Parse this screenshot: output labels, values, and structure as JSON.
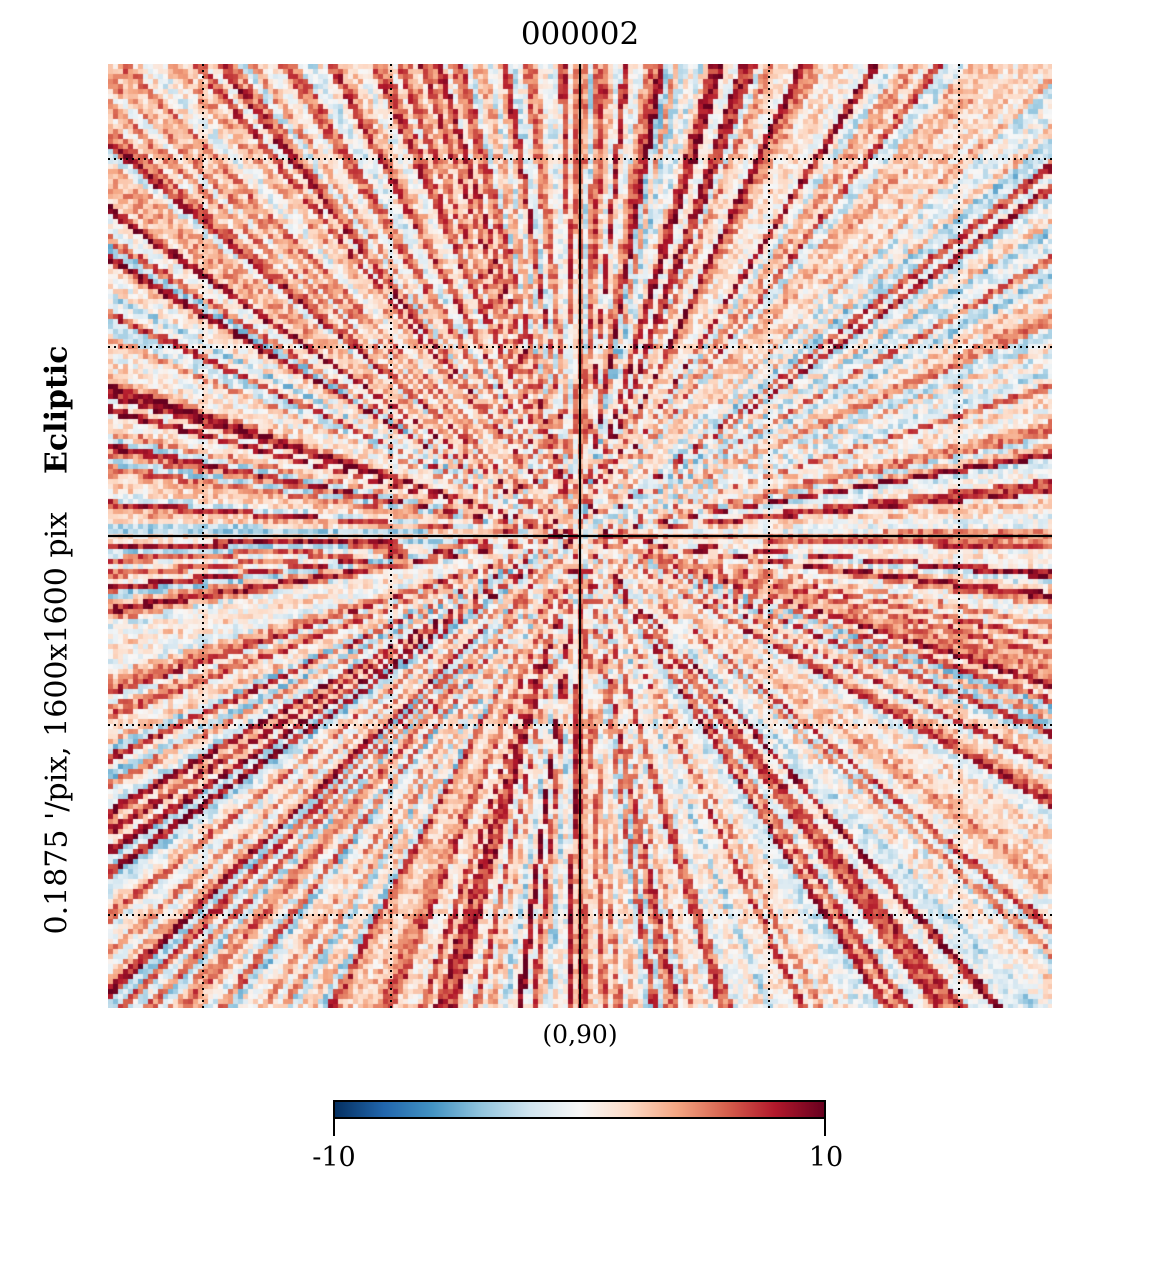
{
  "title": "000002",
  "ylabel": {
    "main": "0.1875 '/pix,  1600x1600 pix",
    "coord": "Ecliptic"
  },
  "center_label": "(0,90)",
  "colorbar": {
    "min_label": "-10",
    "max_label": "10",
    "colormap": "RdBu_r",
    "colors": [
      "#053061",
      "#2166ac",
      "#4393c3",
      "#92c5de",
      "#d1e5f0",
      "#f7f7f7",
      "#fddbc7",
      "#f4a582",
      "#d6604d",
      "#b2182b",
      "#67001f"
    ]
  },
  "chart_data": {
    "type": "heatmap",
    "title": "000002",
    "projection": "gnomonic",
    "center": "(0,90)",
    "coord": "Ecliptic",
    "resolution_arcmin_per_pix": 0.1875,
    "size_pix": "1600x1600",
    "vmin": -10,
    "vmax": 10,
    "grid": true,
    "pattern": "radial streaks from center, predominantly positive (red) values"
  }
}
